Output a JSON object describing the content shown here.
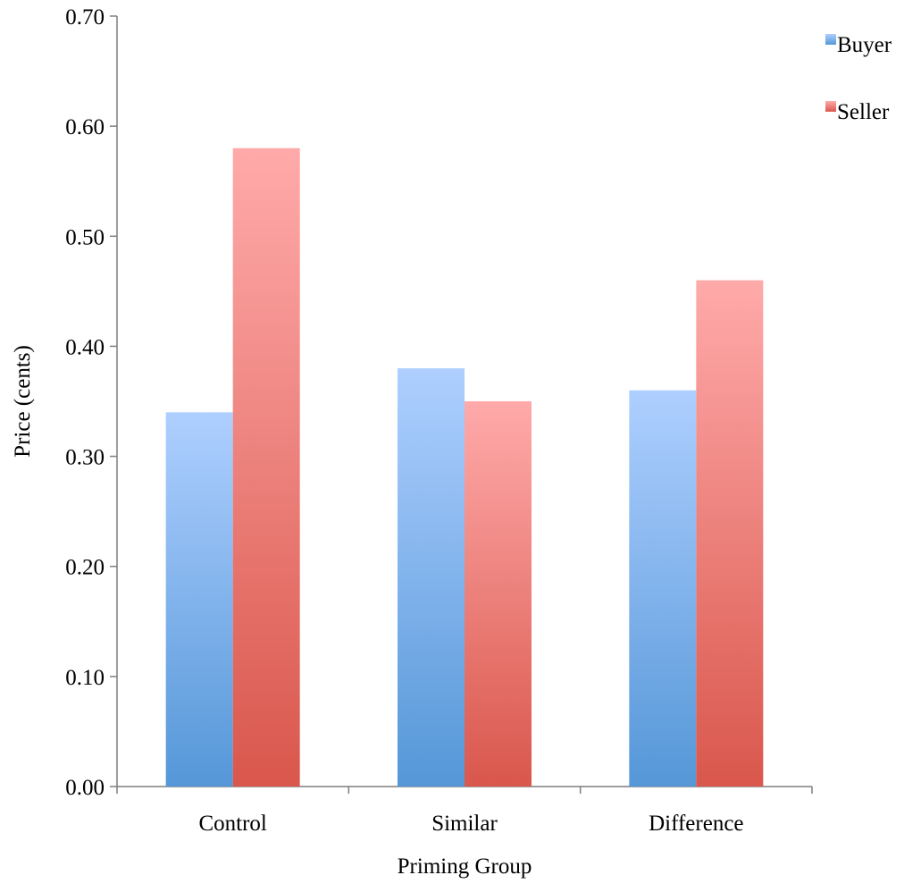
{
  "chart_data": {
    "type": "bar",
    "categories": [
      "Control",
      "Similar",
      "Difference"
    ],
    "series": [
      {
        "name": "Buyer",
        "values": [
          0.34,
          0.38,
          0.36
        ],
        "color_top": "#aecfff",
        "color_bottom": "#5597d8"
      },
      {
        "name": "Seller",
        "values": [
          0.58,
          0.35,
          0.46
        ],
        "color_top": "#ffaaaa",
        "color_bottom": "#d9574c"
      }
    ],
    "xlabel": "Priming Group",
    "ylabel": "Price (cents)",
    "ylim": [
      0,
      0.7
    ],
    "yticks": [
      "0.00",
      "0.10",
      "0.20",
      "0.30",
      "0.40",
      "0.50",
      "0.60",
      "0.70"
    ],
    "grid": false,
    "legend_position": "top-right"
  }
}
